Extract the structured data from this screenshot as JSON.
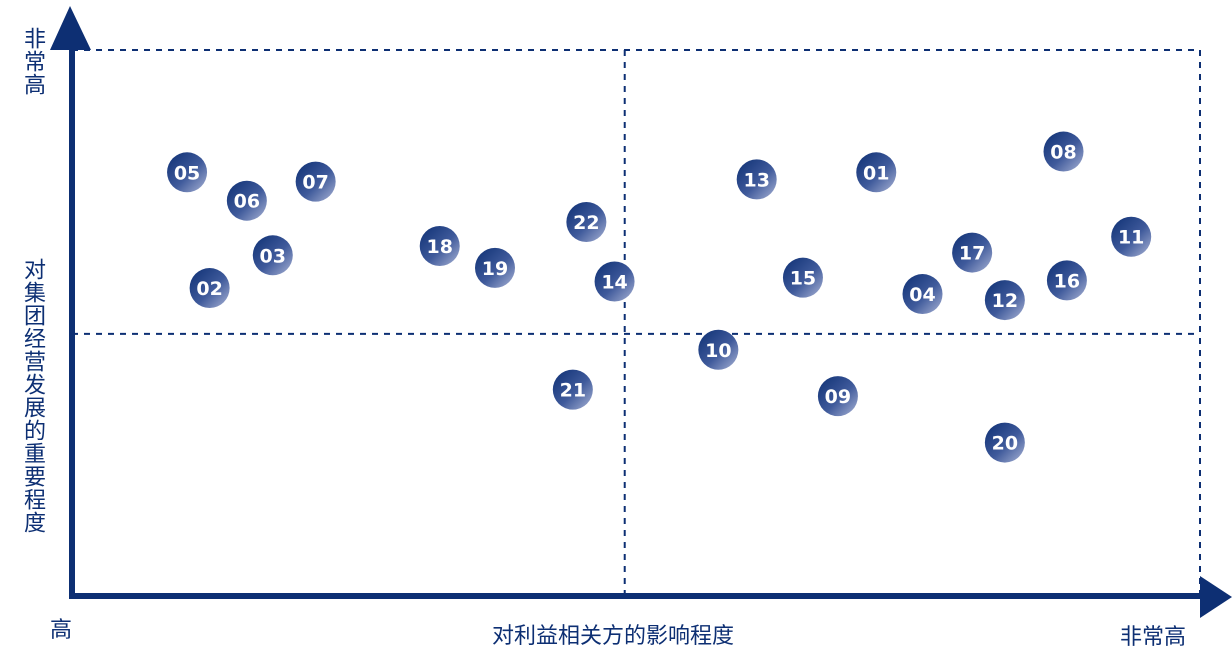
{
  "chart_data": {
    "type": "scatter",
    "ylabel_top": "非常高",
    "ylabel": "对集团经营发展的重要程度",
    "xlabel_low": "高",
    "xlabel": "对利益相关方的影响程度",
    "xlabel_high": "非常高",
    "xlim": [
      0,
      100
    ],
    "ylim": [
      0,
      100
    ],
    "quadrant_split": {
      "x": 49,
      "y": 48
    },
    "colors": {
      "axis": "#0d2f73",
      "marker_dark": "#0d2f73",
      "marker_light": "#aab4d6",
      "marker_text": "#ffffff"
    },
    "points": [
      {
        "label": "01",
        "x": 71.3,
        "y": 77.6
      },
      {
        "label": "02",
        "x": 12.2,
        "y": 56.4
      },
      {
        "label": "03",
        "x": 17.8,
        "y": 62.4
      },
      {
        "label": "04",
        "x": 75.4,
        "y": 55.3
      },
      {
        "label": "05",
        "x": 10.2,
        "y": 77.6
      },
      {
        "label": "06",
        "x": 15.5,
        "y": 72.4
      },
      {
        "label": "07",
        "x": 21.6,
        "y": 75.9
      },
      {
        "label": "08",
        "x": 87.9,
        "y": 81.4
      },
      {
        "label": "09",
        "x": 67.9,
        "y": 36.6
      },
      {
        "label": "10",
        "x": 57.3,
        "y": 45.1
      },
      {
        "label": "11",
        "x": 93.9,
        "y": 65.8
      },
      {
        "label": "12",
        "x": 82.7,
        "y": 54.2
      },
      {
        "label": "13",
        "x": 60.7,
        "y": 76.3
      },
      {
        "label": "14",
        "x": 48.1,
        "y": 57.6
      },
      {
        "label": "15",
        "x": 64.8,
        "y": 58.3
      },
      {
        "label": "16",
        "x": 88.2,
        "y": 57.8
      },
      {
        "label": "17",
        "x": 79.8,
        "y": 62.9
      },
      {
        "label": "18",
        "x": 32.6,
        "y": 64.1
      },
      {
        "label": "19",
        "x": 37.5,
        "y": 60.1
      },
      {
        "label": "20",
        "x": 82.7,
        "y": 28.1
      },
      {
        "label": "21",
        "x": 44.4,
        "y": 37.8
      },
      {
        "label": "22",
        "x": 45.6,
        "y": 68.5
      }
    ]
  }
}
